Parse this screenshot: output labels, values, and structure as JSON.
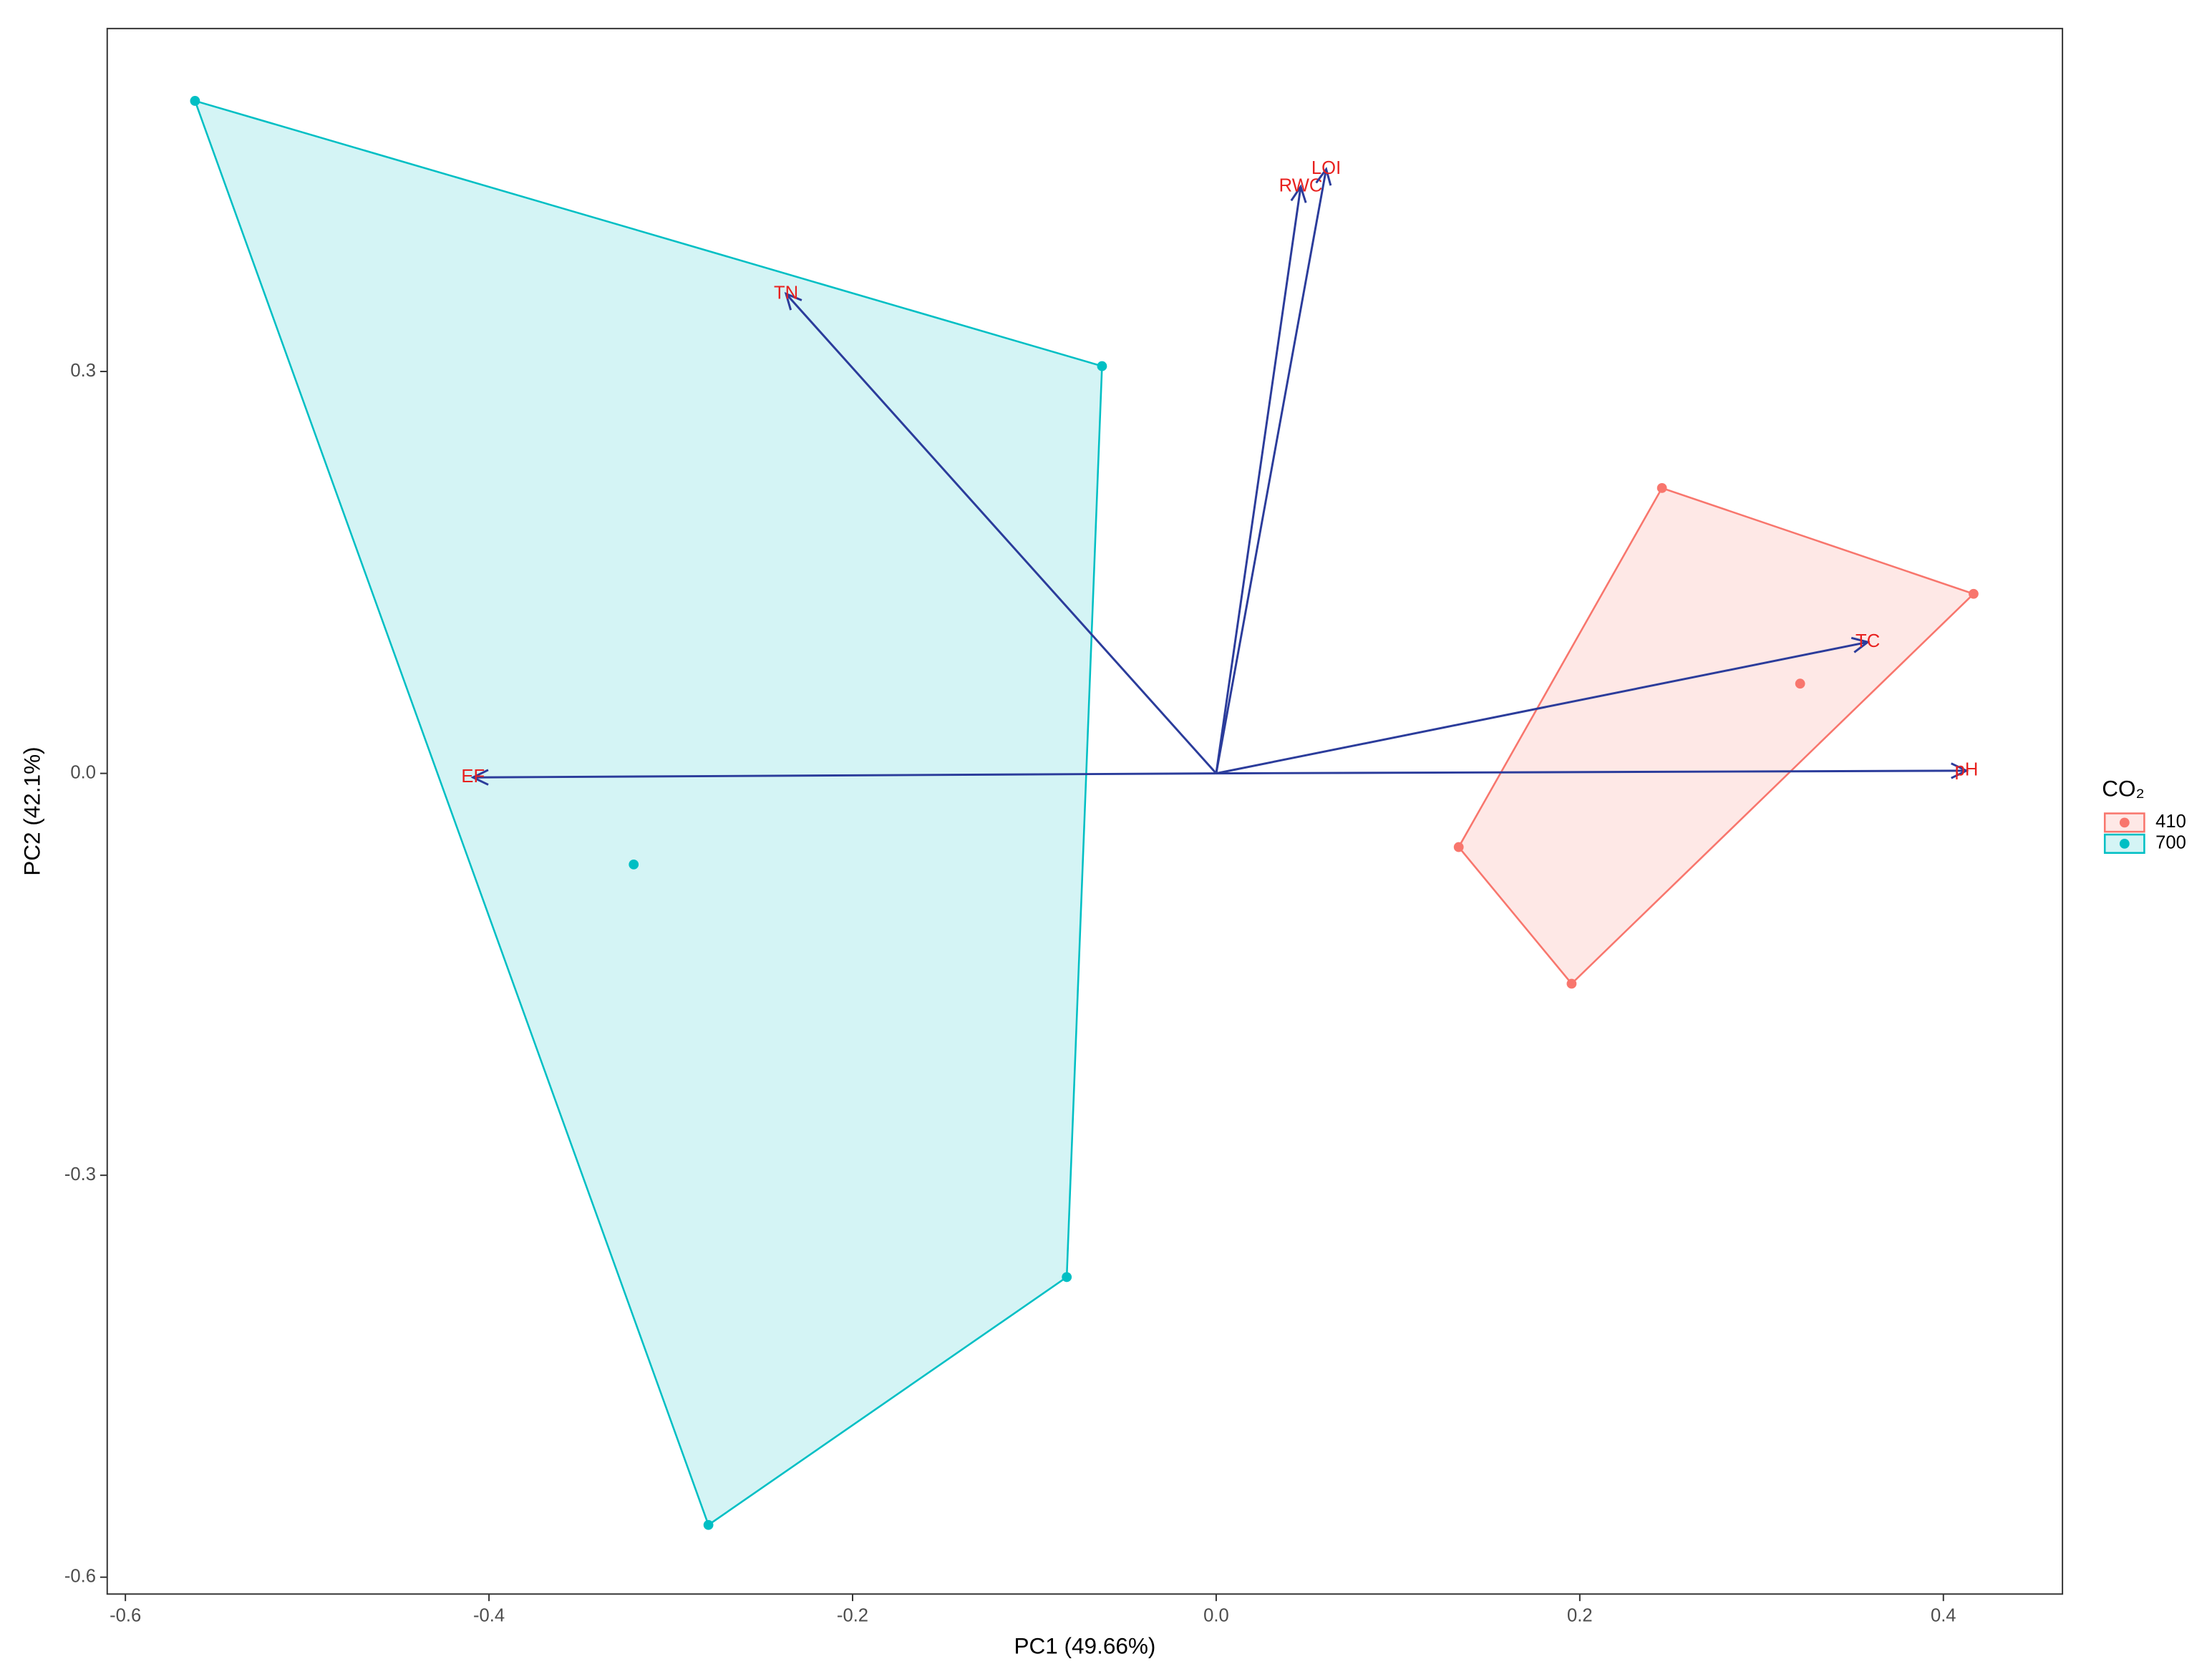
{
  "chart_data": {
    "type": "scatter",
    "x_label": "PC1 (49.66%)",
    "y_label": "PC2 (42.1%)",
    "legend_title": "CO₂",
    "xlim": [
      -0.61,
      0.4655
    ],
    "ylim": [
      -0.6126,
      0.556
    ],
    "xticks": [
      -0.6,
      -0.4,
      -0.2,
      {
        "value": 0,
        "label": "0.0"
      },
      0.2,
      0.4
    ],
    "yticks": [
      -0.6,
      -0.3,
      {
        "value": 0,
        "label": "0.0"
      },
      0.3
    ],
    "grid": false,
    "hull": true,
    "legend_position": "right",
    "series": [
      {
        "name": "410",
        "color": "#F8766D",
        "x": [
          0.2452,
          0.4166,
          0.1955,
          0.1334,
          0.3212
        ],
        "values": [
          0.213,
          0.134,
          -0.157,
          -0.055,
          0.067
        ]
      },
      {
        "name": "700",
        "color": "#00BFC4",
        "x": [
          -0.5617,
          -0.0628,
          -0.0822,
          -0.2793,
          -0.3204
        ],
        "values": [
          0.502,
          0.304,
          -0.376,
          -0.561,
          -0.068
        ]
      }
    ],
    "loadings_color": "#2B3C9B",
    "loadings_label_color": "#E8211F",
    "loadings": [
      {
        "name": "TN",
        "x": -0.2366,
        "y": 0.358
      },
      {
        "name": "RWC",
        "x": 0.0465,
        "y": 0.438
      },
      {
        "name": "LOI",
        "x": 0.0605,
        "y": 0.451
      },
      {
        "name": "TC",
        "x": 0.3584,
        "y": 0.098
      },
      {
        "name": "pH",
        "x": 0.4127,
        "y": 0.002
      },
      {
        "name": "EF",
        "x": -0.4088,
        "y": -0.003
      }
    ]
  }
}
